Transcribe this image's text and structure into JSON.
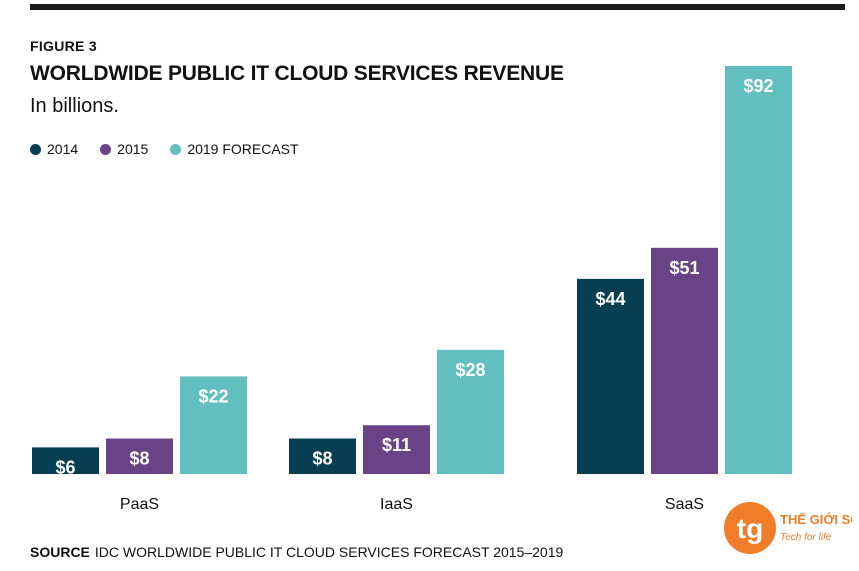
{
  "figure_label": "FIGURE 3",
  "source": {
    "label": "SOURCE",
    "text": "IDC WORLDWIDE PUBLIC IT CLOUD SERVICES FORECAST 2015–2019"
  },
  "logo": {
    "mark": "tg",
    "name": "THẾ GIỚI SỐ",
    "tagline": "Tech for life"
  },
  "colors": {
    "2014": "#073e52",
    "2015": "#684386",
    "2019 FORECAST": "#62bfc0",
    "logo": "#ef7d29"
  },
  "chart_data": {
    "type": "bar",
    "title": "WORLDWIDE PUBLIC IT CLOUD SERVICES REVENUE",
    "subtitle": "In billions.",
    "categories": [
      "PaaS",
      "IaaS",
      "SaaS"
    ],
    "series": [
      {
        "name": "2014",
        "values": [
          6,
          8,
          44
        ],
        "labels": [
          "$6",
          "$8",
          "$44"
        ]
      },
      {
        "name": "2015",
        "values": [
          8,
          11,
          51
        ],
        "labels": [
          "$8",
          "$11",
          "$51"
        ]
      },
      {
        "name": "2019 FORECAST",
        "values": [
          22,
          28,
          92
        ],
        "labels": [
          "$22",
          "$28",
          "$92"
        ]
      }
    ],
    "ylim": [
      0,
      92
    ],
    "grid": false,
    "legend": "top-left"
  }
}
